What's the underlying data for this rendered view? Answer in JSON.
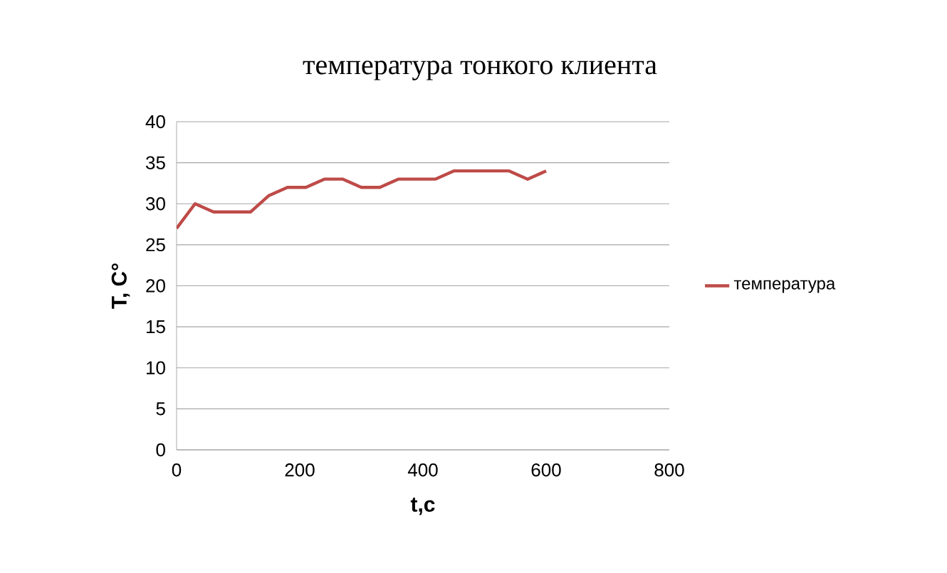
{
  "chart_data": {
    "type": "line",
    "title": "температура тонкого клиента",
    "xlabel": "t,c",
    "ylabel": "T, C°",
    "x": [
      0,
      30,
      60,
      90,
      120,
      150,
      180,
      210,
      240,
      270,
      300,
      330,
      360,
      390,
      420,
      450,
      480,
      510,
      540,
      570,
      600
    ],
    "series": [
      {
        "name": "температура",
        "color": "#be4b48",
        "values": [
          27,
          30,
          29,
          29,
          29,
          31,
          32,
          32,
          33,
          33,
          32,
          32,
          33,
          33,
          33,
          34,
          34,
          34,
          34,
          33,
          34
        ]
      }
    ],
    "xlim": [
      0,
      800
    ],
    "ylim": [
      0,
      40
    ],
    "xticks": [
      0,
      200,
      400,
      600,
      800
    ],
    "yticks": [
      0,
      5,
      10,
      15,
      20,
      25,
      30,
      35,
      40
    ],
    "grid": "y",
    "legend": "right",
    "marker": "none",
    "line_style": "solid"
  }
}
